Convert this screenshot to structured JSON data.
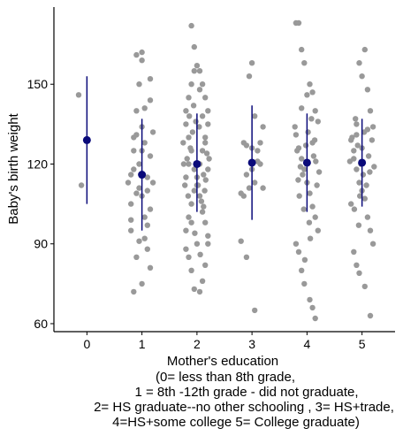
{
  "chart_data": {
    "type": "scatter",
    "xlabel_lines": [
      "Mother's education",
      "(0= less than 8th grade,",
      "1 = 8th -12th grade - did not graduate,",
      "2= HS graduate--no other schooling , 3= HS+trade,",
      "4=HS+some college 5= College graduate)"
    ],
    "ylabel": "Baby's birth weight",
    "x_ticks": [
      0,
      1,
      2,
      3,
      4,
      5
    ],
    "y_ticks": [
      60,
      90,
      120,
      150
    ],
    "xlim": [
      -0.6,
      5.6
    ],
    "ylim": [
      57,
      179
    ],
    "grid": false,
    "colors": {
      "points": "#999999",
      "summary": "#0a0a7a",
      "axis": "#000000"
    },
    "summary": [
      {
        "x": 0,
        "mean": 129,
        "lower": 105,
        "upper": 153
      },
      {
        "x": 1,
        "mean": 116,
        "lower": 95,
        "upper": 137
      },
      {
        "x": 2,
        "mean": 120,
        "lower": 102,
        "upper": 139
      },
      {
        "x": 3,
        "mean": 120.5,
        "lower": 99,
        "upper": 142
      },
      {
        "x": 4,
        "mean": 120.5,
        "lower": 102,
        "upper": 139
      },
      {
        "x": 5,
        "mean": 120.5,
        "lower": 104,
        "upper": 137
      }
    ],
    "points": [
      [
        -0.15,
        146
      ],
      [
        -0.1,
        112
      ],
      [
        0.75,
        113
      ],
      [
        0.8,
        105
      ],
      [
        0.85,
        130
      ],
      [
        0.9,
        161
      ],
      [
        0.95,
        150
      ],
      [
        1.0,
        159
      ],
      [
        1.05,
        141
      ],
      [
        1.15,
        152
      ],
      [
        1.2,
        132
      ],
      [
        0.8,
        95
      ],
      [
        0.85,
        72
      ],
      [
        1.0,
        75
      ],
      [
        1.15,
        81
      ],
      [
        0.9,
        85
      ],
      [
        1.05,
        100
      ],
      [
        1.1,
        110
      ],
      [
        0.95,
        120
      ],
      [
        1.0,
        125
      ],
      [
        0.85,
        118
      ],
      [
        1.1,
        115
      ],
      [
        0.9,
        109
      ],
      [
        1.15,
        103
      ],
      [
        0.8,
        99
      ],
      [
        0.95,
        91
      ],
      [
        1.05,
        128
      ],
      [
        1.2,
        113
      ],
      [
        1.0,
        134
      ],
      [
        0.9,
        140
      ],
      [
        1.15,
        144
      ],
      [
        0.85,
        125
      ],
      [
        1.1,
        97
      ],
      [
        1.0,
        108
      ],
      [
        1.15,
        123
      ],
      [
        0.95,
        111
      ],
      [
        0.8,
        116
      ],
      [
        1.05,
        92
      ],
      [
        0.9,
        131
      ],
      [
        1.0,
        162
      ],
      [
        1.1,
        88
      ],
      [
        1.75,
        128
      ],
      [
        1.8,
        115
      ],
      [
        1.85,
        120
      ],
      [
        1.9,
        172
      ],
      [
        1.95,
        164
      ],
      [
        2.05,
        155
      ],
      [
        2.1,
        150
      ],
      [
        2.15,
        145
      ],
      [
        2.2,
        140
      ],
      [
        1.8,
        135
      ],
      [
        1.85,
        130
      ],
      [
        1.9,
        125
      ],
      [
        1.95,
        118
      ],
      [
        2.0,
        112
      ],
      [
        2.05,
        108
      ],
      [
        2.1,
        102
      ],
      [
        2.15,
        98
      ],
      [
        2.2,
        93
      ],
      [
        1.8,
        88
      ],
      [
        1.85,
        85
      ],
      [
        1.9,
        80
      ],
      [
        1.95,
        73
      ],
      [
        2.05,
        72
      ],
      [
        2.1,
        76
      ],
      [
        2.15,
        82
      ],
      [
        2.2,
        90
      ],
      [
        1.8,
        95
      ],
      [
        1.85,
        100
      ],
      [
        1.9,
        105
      ],
      [
        1.95,
        110
      ],
      [
        2.0,
        115
      ],
      [
        2.05,
        120
      ],
      [
        2.1,
        125
      ],
      [
        2.15,
        130
      ],
      [
        2.2,
        135
      ],
      [
        1.8,
        140
      ],
      [
        1.85,
        145
      ],
      [
        1.9,
        150
      ],
      [
        1.95,
        155
      ],
      [
        2.0,
        157
      ],
      [
        2.05,
        148
      ],
      [
        2.1,
        138
      ],
      [
        2.15,
        128
      ],
      [
        2.2,
        118
      ],
      [
        1.82,
        122
      ],
      [
        1.88,
        126
      ],
      [
        1.92,
        132
      ],
      [
        1.98,
        136
      ],
      [
        2.02,
        112
      ],
      [
        2.08,
        106
      ],
      [
        2.12,
        116
      ],
      [
        2.18,
        124
      ],
      [
        1.78,
        112
      ],
      [
        1.84,
        108
      ],
      [
        1.9,
        98
      ],
      [
        1.96,
        94
      ],
      [
        2.0,
        90
      ],
      [
        2.06,
        86
      ],
      [
        2.12,
        104
      ],
      [
        2.16,
        114
      ],
      [
        1.86,
        138
      ],
      [
        1.94,
        142
      ],
      [
        2.04,
        134
      ],
      [
        2.14,
        110
      ],
      [
        1.76,
        120
      ],
      [
        2.22,
        122
      ],
      [
        2.8,
        109
      ],
      [
        2.85,
        108
      ],
      [
        2.9,
        85
      ],
      [
        2.95,
        153
      ],
      [
        3.0,
        158
      ],
      [
        3.05,
        138
      ],
      [
        3.1,
        125
      ],
      [
        3.15,
        120
      ],
      [
        3.2,
        134
      ],
      [
        2.85,
        128
      ],
      [
        2.9,
        116
      ],
      [
        2.95,
        111
      ],
      [
        3.0,
        126
      ],
      [
        3.05,
        113
      ],
      [
        3.1,
        121
      ],
      [
        3.15,
        128
      ],
      [
        2.8,
        91
      ],
      [
        3.05,
        65
      ],
      [
        3.2,
        111
      ],
      [
        2.9,
        127
      ],
      [
        3.0,
        118
      ],
      [
        3.8,
        173
      ],
      [
        3.85,
        173
      ],
      [
        3.9,
        163
      ],
      [
        3.95,
        158
      ],
      [
        4.05,
        150
      ],
      [
        4.1,
        147
      ],
      [
        4.15,
        140
      ],
      [
        4.2,
        136
      ],
      [
        3.8,
        131
      ],
      [
        3.85,
        126
      ],
      [
        3.9,
        122
      ],
      [
        3.95,
        118
      ],
      [
        4.0,
        113
      ],
      [
        4.05,
        109
      ],
      [
        4.1,
        104
      ],
      [
        4.15,
        100
      ],
      [
        4.2,
        95
      ],
      [
        3.8,
        90
      ],
      [
        3.85,
        87
      ],
      [
        3.9,
        80
      ],
      [
        3.95,
        75
      ],
      [
        4.05,
        69
      ],
      [
        4.1,
        66
      ],
      [
        4.15,
        62
      ],
      [
        3.82,
        125
      ],
      [
        3.88,
        119
      ],
      [
        3.92,
        116
      ],
      [
        3.98,
        127
      ],
      [
        4.02,
        132
      ],
      [
        4.08,
        137
      ],
      [
        4.12,
        123
      ],
      [
        4.18,
        112
      ],
      [
        3.86,
        108
      ],
      [
        3.94,
        103
      ],
      [
        4.04,
        98
      ],
      [
        4.14,
        129
      ],
      [
        3.78,
        134
      ],
      [
        4.22,
        117
      ],
      [
        4.0,
        146
      ],
      [
        3.9,
        141
      ],
      [
        4.1,
        128
      ],
      [
        3.84,
        114
      ],
      [
        4.16,
        121
      ],
      [
        4.06,
        92
      ],
      [
        3.96,
        84
      ],
      [
        4.8,
        105
      ],
      [
        4.85,
        122
      ],
      [
        4.9,
        135
      ],
      [
        4.95,
        158
      ],
      [
        5.0,
        153
      ],
      [
        5.05,
        163
      ],
      [
        5.1,
        148
      ],
      [
        5.15,
        140
      ],
      [
        5.2,
        134
      ],
      [
        4.8,
        129
      ],
      [
        4.85,
        125
      ],
      [
        4.9,
        118
      ],
      [
        4.95,
        113
      ],
      [
        5.0,
        110
      ],
      [
        5.05,
        107
      ],
      [
        5.1,
        100
      ],
      [
        5.15,
        95
      ],
      [
        5.2,
        90
      ],
      [
        4.85,
        87
      ],
      [
        4.9,
        82
      ],
      [
        4.95,
        79
      ],
      [
        5.05,
        74
      ],
      [
        5.15,
        63
      ],
      [
        4.82,
        130
      ],
      [
        4.88,
        137
      ],
      [
        4.92,
        127
      ],
      [
        4.98,
        120
      ],
      [
        5.02,
        116
      ],
      [
        5.08,
        112
      ],
      [
        5.12,
        123
      ],
      [
        5.18,
        129
      ],
      [
        4.86,
        103
      ],
      [
        4.94,
        97
      ],
      [
        5.04,
        132
      ],
      [
        5.14,
        117
      ],
      [
        4.78,
        121
      ],
      [
        5.22,
        119
      ],
      [
        5.0,
        126
      ],
      [
        4.9,
        131
      ],
      [
        5.1,
        133
      ],
      [
        4.96,
        108
      ]
    ]
  }
}
